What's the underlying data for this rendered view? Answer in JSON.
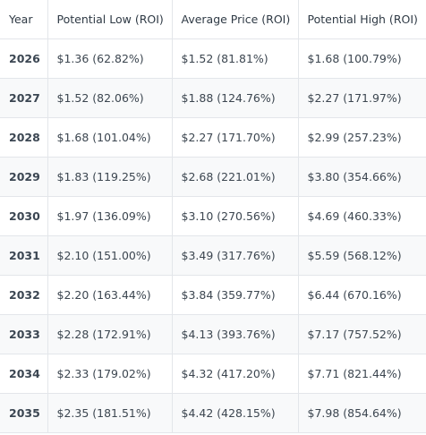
{
  "table": {
    "headers": [
      "Year",
      "Potential Low (ROI)",
      "Average Price (ROI)",
      "Potential High (ROI)"
    ],
    "rows": [
      {
        "year": "2026",
        "low": "$1.36 (62.82%)",
        "avg": "$1.52 (81.81%)",
        "high": "$1.68 (100.79%)"
      },
      {
        "year": "2027",
        "low": "$1.52 (82.06%)",
        "avg": "$1.88 (124.76%)",
        "high": "$2.27 (171.97%)"
      },
      {
        "year": "2028",
        "low": "$1.68 (101.04%)",
        "avg": "$2.27 (171.70%)",
        "high": "$2.99 (257.23%)"
      },
      {
        "year": "2029",
        "low": "$1.83 (119.25%)",
        "avg": "$2.68 (221.01%)",
        "high": "$3.80 (354.66%)"
      },
      {
        "year": "2030",
        "low": "$1.97 (136.09%)",
        "avg": "$3.10 (270.56%)",
        "high": "$4.69 (460.33%)"
      },
      {
        "year": "2031",
        "low": "$2.10 (151.00%)",
        "avg": "$3.49 (317.76%)",
        "high": "$5.59 (568.12%)"
      },
      {
        "year": "2032",
        "low": "$2.20 (163.44%)",
        "avg": "$3.84 (359.77%)",
        "high": "$6.44 (670.16%)"
      },
      {
        "year": "2033",
        "low": "$2.28 (172.91%)",
        "avg": "$4.13 (393.76%)",
        "high": "$7.17 (757.52%)"
      },
      {
        "year": "2034",
        "low": "$2.33 (179.02%)",
        "avg": "$4.32 (417.20%)",
        "high": "$7.71 (821.44%)"
      },
      {
        "year": "2035",
        "low": "$2.35 (181.51%)",
        "avg": "$4.42 (428.15%)",
        "high": "$7.98 (854.64%)"
      }
    ]
  }
}
